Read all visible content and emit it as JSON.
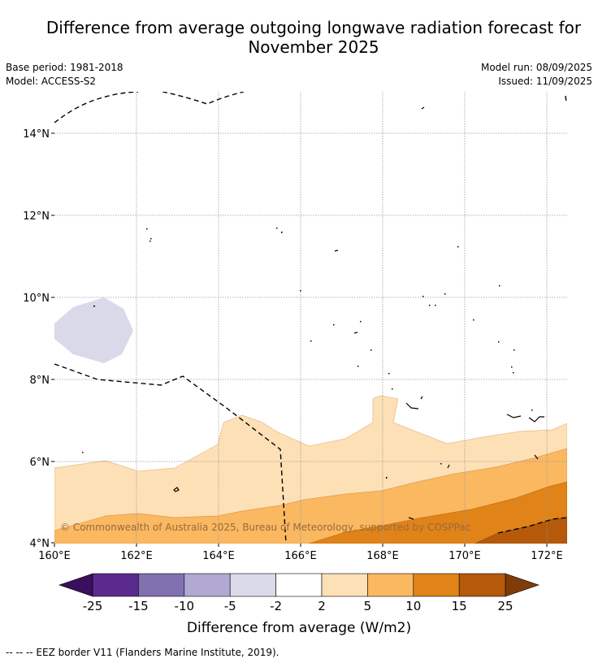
{
  "header": {
    "title_line1": "Difference from average outgoing longwave radiation forecast for",
    "title_line2": "November 2025",
    "base_period": "Base period: 1981-2018",
    "model": "Model: ACCESS-S2",
    "model_run": "Model run: 08/09/2025",
    "issued": "Issued: 11/09/2025"
  },
  "map": {
    "lon_ticks": [
      "160°E",
      "162°E",
      "164°E",
      "166°E",
      "168°E",
      "170°E",
      "172°E"
    ],
    "lat_ticks": [
      "4°N",
      "6°N",
      "8°N",
      "10°N",
      "12°N",
      "14°N"
    ],
    "copyright": "© Commonwealth of Australia 2025, Bureau of Meteorology, supported by COSPPac"
  },
  "colorbar": {
    "tick_labels": [
      "-25",
      "-15",
      "-10",
      "-5",
      "-2",
      "2",
      "5",
      "10",
      "15",
      "25"
    ],
    "colors": [
      "#5b2a8e",
      "#8271b1",
      "#b1a9d2",
      "#d9d9ea",
      "#ffffff",
      "#fde0b6",
      "#fab861",
      "#e08318",
      "#b45a0a"
    ],
    "low_extend_color": "#3b0f5c",
    "high_extend_color": "#7f3b08",
    "label": "Difference from average (W/m2)"
  },
  "legend": {
    "eez_label": "--  --  -- EEZ border V11 (Flanders Marine Institute, 2019)."
  }
}
